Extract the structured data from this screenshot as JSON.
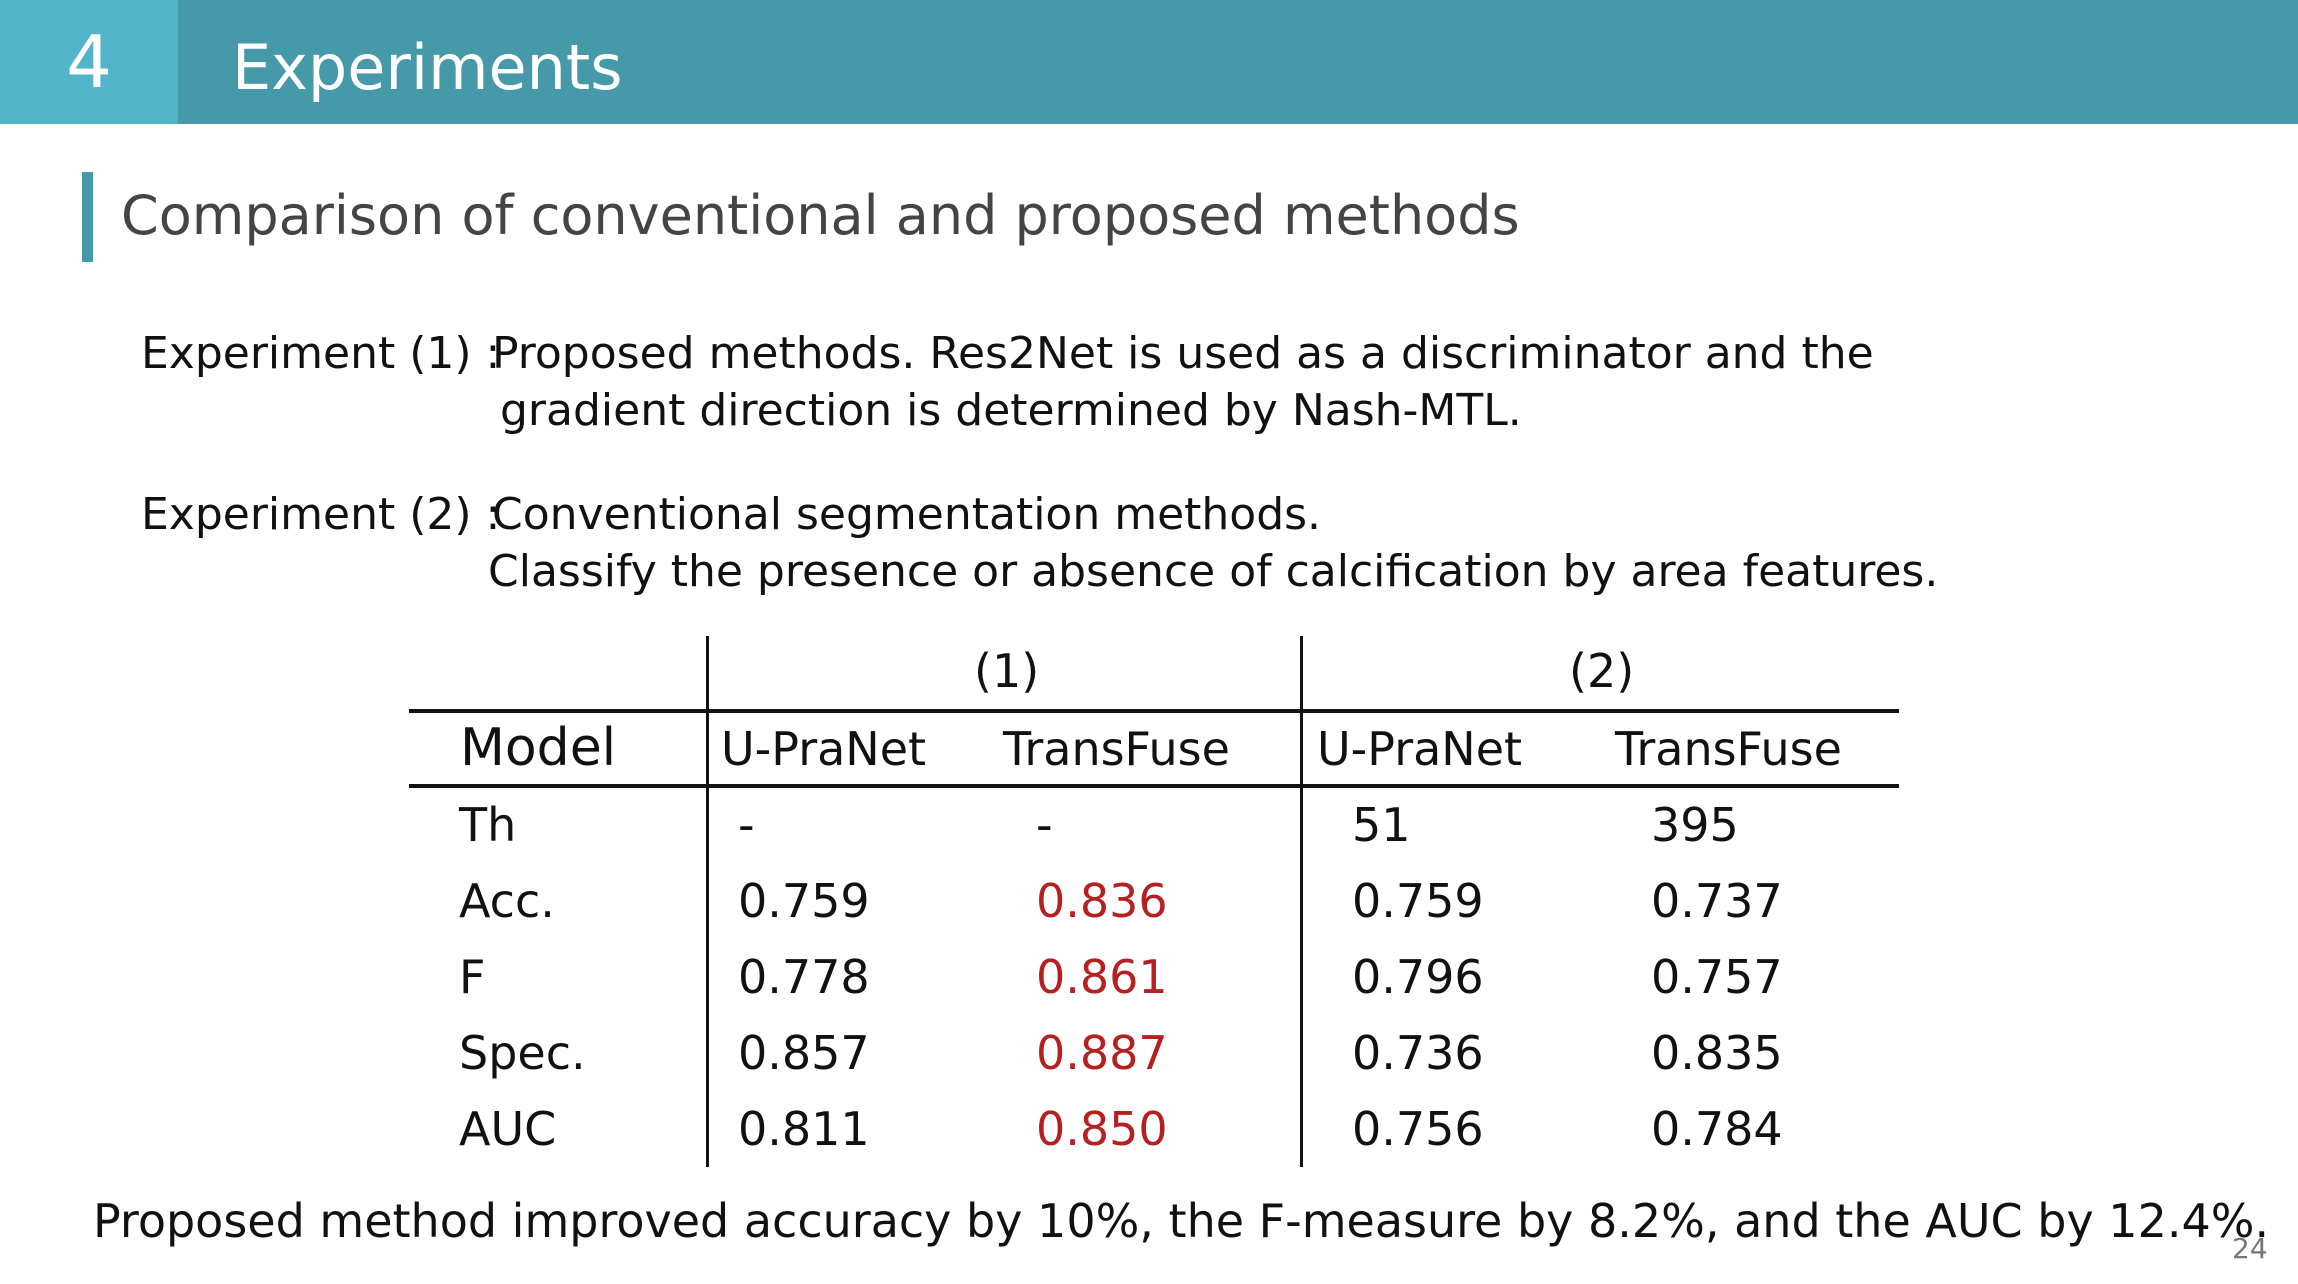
{
  "header": {
    "section_number": "4",
    "title": "Experiments"
  },
  "subtitle": "Comparison of conventional and proposed methods",
  "experiments": [
    {
      "label": "Experiment (1) :",
      "line1": "Proposed methods. Res2Net is used as a discriminator and the",
      "line2": "gradient direction is determined by Nash-MTL."
    },
    {
      "label": "Experiment (2) :",
      "line1": "Conventional segmentation methods.",
      "line2": "Classify the presence or absence of calcification by area features."
    }
  ],
  "table": {
    "group_headers": [
      "(1)",
      "(2)"
    ],
    "columns": [
      "Model",
      "U-PraNet",
      "TransFuse",
      "U-PraNet",
      "TransFuse"
    ],
    "rows": [
      {
        "metric": "Th",
        "values": [
          "-",
          "-",
          "51",
          "395"
        ]
      },
      {
        "metric": "Acc.",
        "values": [
          "0.759",
          "0.836",
          "0.759",
          "0.737"
        ]
      },
      {
        "metric": "F",
        "values": [
          "0.778",
          "0.861",
          "0.796",
          "0.757"
        ]
      },
      {
        "metric": "Spec.",
        "values": [
          "0.857",
          "0.887",
          "0.736",
          "0.835"
        ]
      },
      {
        "metric": "AUC",
        "values": [
          "0.811",
          "0.850",
          "0.756",
          "0.784"
        ]
      }
    ],
    "highlight_color": "#b52121"
  },
  "conclusion": "Proposed method improved accuracy by 10%, the F-measure by 8.2%, and the AUC by 12.4%.",
  "page_number": "24",
  "colors": {
    "header_bar": "#4599a8",
    "section_box": "#52b4c9"
  }
}
